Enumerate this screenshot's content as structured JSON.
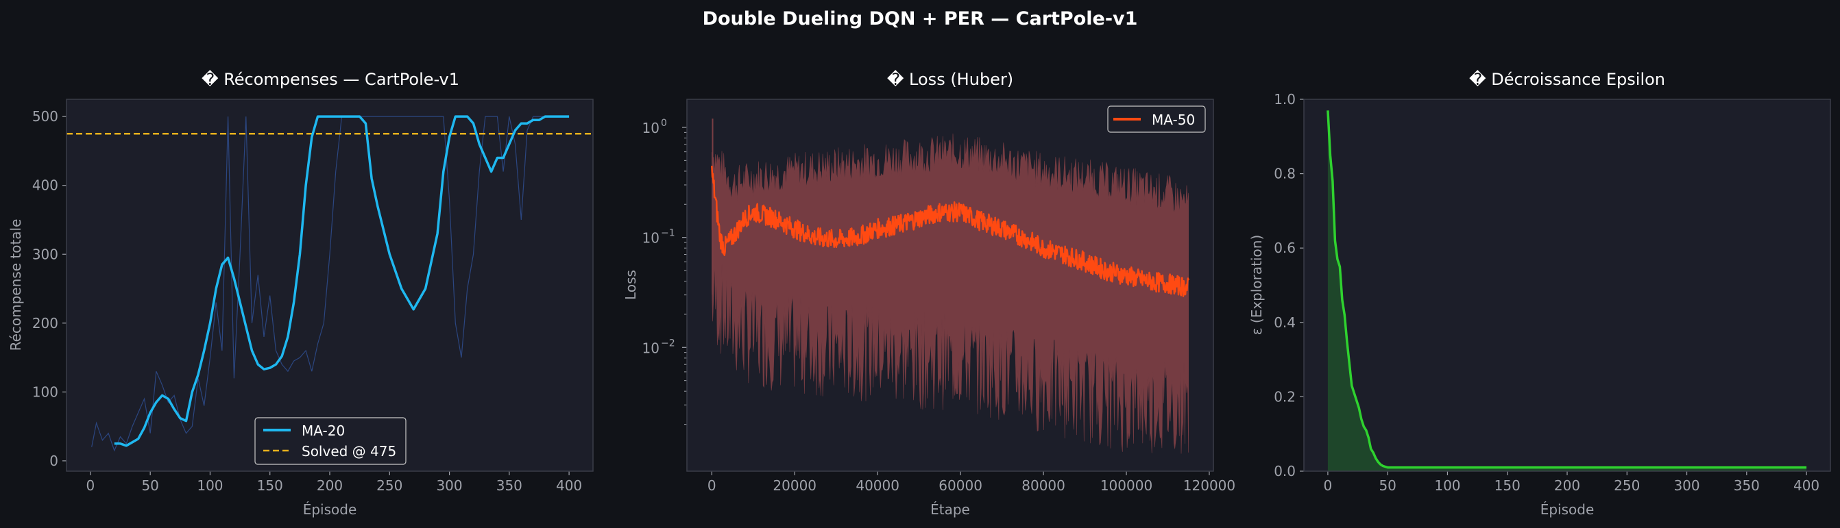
{
  "figure": {
    "suptitle": "Double Dueling DQN + PER — CartPole-v1"
  },
  "colors": {
    "figure_bg": "#111318",
    "axes_bg": "#1c1e29",
    "spine": "#3a3d48",
    "tick_text": "#a0a3ab",
    "title_text": "#ffffff",
    "reward_raw": "#2e4a8a",
    "reward_ma": "#1fb8f0",
    "solved_line": "#e8b11c",
    "loss_raw": "#7a3e44",
    "loss_ma": "#ff4a12",
    "epsilon_line": "#2fd22f",
    "epsilon_fill": "#1f4a2a"
  },
  "chart_data": [
    {
      "type": "line",
      "title": "� Récompenses — CartPole-v1",
      "xlabel": "Épisode",
      "ylabel": "Récompense totale",
      "xlim": [
        -20,
        420
      ],
      "ylim": [
        -15,
        525
      ],
      "xticks": [
        0,
        50,
        100,
        150,
        200,
        250,
        300,
        350,
        400
      ],
      "yticks": [
        0,
        100,
        200,
        300,
        400,
        500
      ],
      "raw_episode_rewards": {
        "episodes": [
          1,
          5,
          10,
          15,
          20,
          25,
          30,
          35,
          40,
          45,
          50,
          55,
          60,
          65,
          70,
          75,
          80,
          85,
          90,
          95,
          100,
          105,
          110,
          115,
          120,
          125,
          130,
          135,
          140,
          145,
          150,
          155,
          160,
          165,
          170,
          175,
          180,
          185,
          190,
          195,
          200,
          205,
          210,
          215,
          220,
          225,
          230,
          235,
          240,
          245,
          250,
          255,
          260,
          265,
          270,
          275,
          280,
          285,
          290,
          295,
          300,
          305,
          310,
          315,
          320,
          325,
          330,
          335,
          340,
          345,
          350,
          355,
          360,
          365,
          370,
          375,
          380,
          385,
          390,
          395,
          400
        ],
        "values": [
          20,
          55,
          30,
          40,
          15,
          35,
          25,
          50,
          70,
          90,
          40,
          130,
          110,
          85,
          95,
          60,
          40,
          50,
          120,
          80,
          150,
          230,
          160,
          500,
          120,
          300,
          500,
          200,
          270,
          180,
          240,
          160,
          140,
          130,
          145,
          150,
          160,
          130,
          170,
          200,
          300,
          420,
          500,
          500,
          500,
          500,
          500,
          500,
          500,
          500,
          500,
          500,
          500,
          500,
          500,
          500,
          500,
          500,
          500,
          500,
          380,
          200,
          150,
          250,
          300,
          420,
          500,
          500,
          500,
          420,
          500,
          460,
          350,
          480,
          500,
          500,
          500,
          500,
          500,
          500,
          500
        ]
      },
      "series": [
        {
          "name": "MA-20",
          "x": [
            20,
            25,
            30,
            35,
            40,
            45,
            50,
            55,
            60,
            65,
            70,
            75,
            80,
            85,
            90,
            95,
            100,
            105,
            110,
            115,
            120,
            125,
            130,
            135,
            140,
            145,
            150,
            155,
            160,
            165,
            170,
            175,
            180,
            185,
            190,
            195,
            200,
            205,
            210,
            215,
            220,
            225,
            230,
            235,
            240,
            250,
            260,
            270,
            280,
            290,
            295,
            300,
            305,
            310,
            315,
            320,
            325,
            330,
            335,
            340,
            345,
            350,
            355,
            360,
            365,
            370,
            375,
            380,
            385,
            390,
            395,
            400
          ],
          "y": [
            25,
            25,
            22,
            27,
            32,
            48,
            70,
            85,
            95,
            90,
            75,
            62,
            58,
            100,
            125,
            160,
            200,
            250,
            285,
            295,
            265,
            230,
            195,
            160,
            140,
            133,
            135,
            140,
            152,
            180,
            230,
            300,
            400,
            470,
            500,
            500,
            500,
            500,
            500,
            500,
            500,
            500,
            490,
            410,
            370,
            300,
            250,
            220,
            250,
            330,
            420,
            470,
            500,
            500,
            500,
            490,
            460,
            440,
            420,
            440,
            440,
            460,
            480,
            490,
            490,
            495,
            495,
            500,
            500,
            500,
            500,
            500
          ]
        },
        {
          "name": "Solved @ 475",
          "y": 475
        }
      ],
      "legend": "lower-center"
    },
    {
      "type": "line",
      "title": "� Loss (Huber)",
      "xlabel": "Étape",
      "ylabel": "Loss",
      "yscale": "log",
      "xlim": [
        -6000,
        121000
      ],
      "ylim": [
        0.00075,
        1.8
      ],
      "xticks": [
        0,
        20000,
        40000,
        60000,
        80000,
        100000,
        120000
      ],
      "ytick_labels": [
        "10",
        "10",
        "10"
      ],
      "ytick_exponents": [
        "0",
        "−1",
        "−2"
      ],
      "raw_band": {
        "x": [
          0,
          5000,
          10000,
          20000,
          30000,
          40000,
          50000,
          60000,
          70000,
          80000,
          90000,
          100000,
          110000,
          115000
        ],
        "upper": [
          0.6,
          0.3,
          0.35,
          0.4,
          0.45,
          0.5,
          0.55,
          0.6,
          0.5,
          0.4,
          0.35,
          0.3,
          0.25,
          0.2
        ],
        "lower": [
          0.02,
          0.01,
          0.008,
          0.007,
          0.006,
          0.006,
          0.005,
          0.005,
          0.004,
          0.003,
          0.0025,
          0.002,
          0.002,
          0.002
        ]
      },
      "series": [
        {
          "name": "MA-50",
          "x": [
            0,
            1000,
            2000,
            3000,
            5000,
            8000,
            10000,
            15000,
            20000,
            25000,
            30000,
            35000,
            40000,
            45000,
            50000,
            55000,
            60000,
            65000,
            70000,
            75000,
            80000,
            85000,
            90000,
            95000,
            100000,
            105000,
            110000,
            115000
          ],
          "y": [
            0.4,
            0.2,
            0.1,
            0.08,
            0.1,
            0.15,
            0.17,
            0.15,
            0.12,
            0.1,
            0.095,
            0.1,
            0.12,
            0.13,
            0.15,
            0.17,
            0.17,
            0.14,
            0.12,
            0.1,
            0.08,
            0.07,
            0.06,
            0.05,
            0.045,
            0.04,
            0.038,
            0.035
          ]
        }
      ],
      "legend": "top-right"
    },
    {
      "type": "area",
      "title": "� Décroissance Epsilon",
      "xlabel": "Épisode",
      "ylabel": "ε (Exploration)",
      "xlim": [
        -20,
        420
      ],
      "ylim": [
        0,
        1.0
      ],
      "xticks": [
        0,
        50,
        100,
        150,
        200,
        250,
        300,
        350,
        400
      ],
      "yticks": [
        "0.0",
        "0.2",
        "0.4",
        "0.6",
        "0.8",
        "1.0"
      ],
      "series": [
        {
          "x": [
            0,
            2,
            4,
            6,
            8,
            10,
            12,
            14,
            16,
            18,
            20,
            22,
            24,
            26,
            28,
            30,
            32,
            34,
            36,
            38,
            40,
            42,
            44,
            46,
            48,
            50,
            55,
            60,
            80,
            100,
            150,
            200,
            250,
            300,
            350,
            400
          ],
          "y": [
            0.97,
            0.85,
            0.78,
            0.62,
            0.57,
            0.55,
            0.46,
            0.42,
            0.35,
            0.29,
            0.23,
            0.21,
            0.19,
            0.17,
            0.14,
            0.12,
            0.11,
            0.09,
            0.06,
            0.05,
            0.035,
            0.025,
            0.018,
            0.014,
            0.012,
            0.01,
            0.01,
            0.01,
            0.01,
            0.01,
            0.01,
            0.01,
            0.01,
            0.01,
            0.01,
            0.01
          ]
        }
      ]
    }
  ]
}
